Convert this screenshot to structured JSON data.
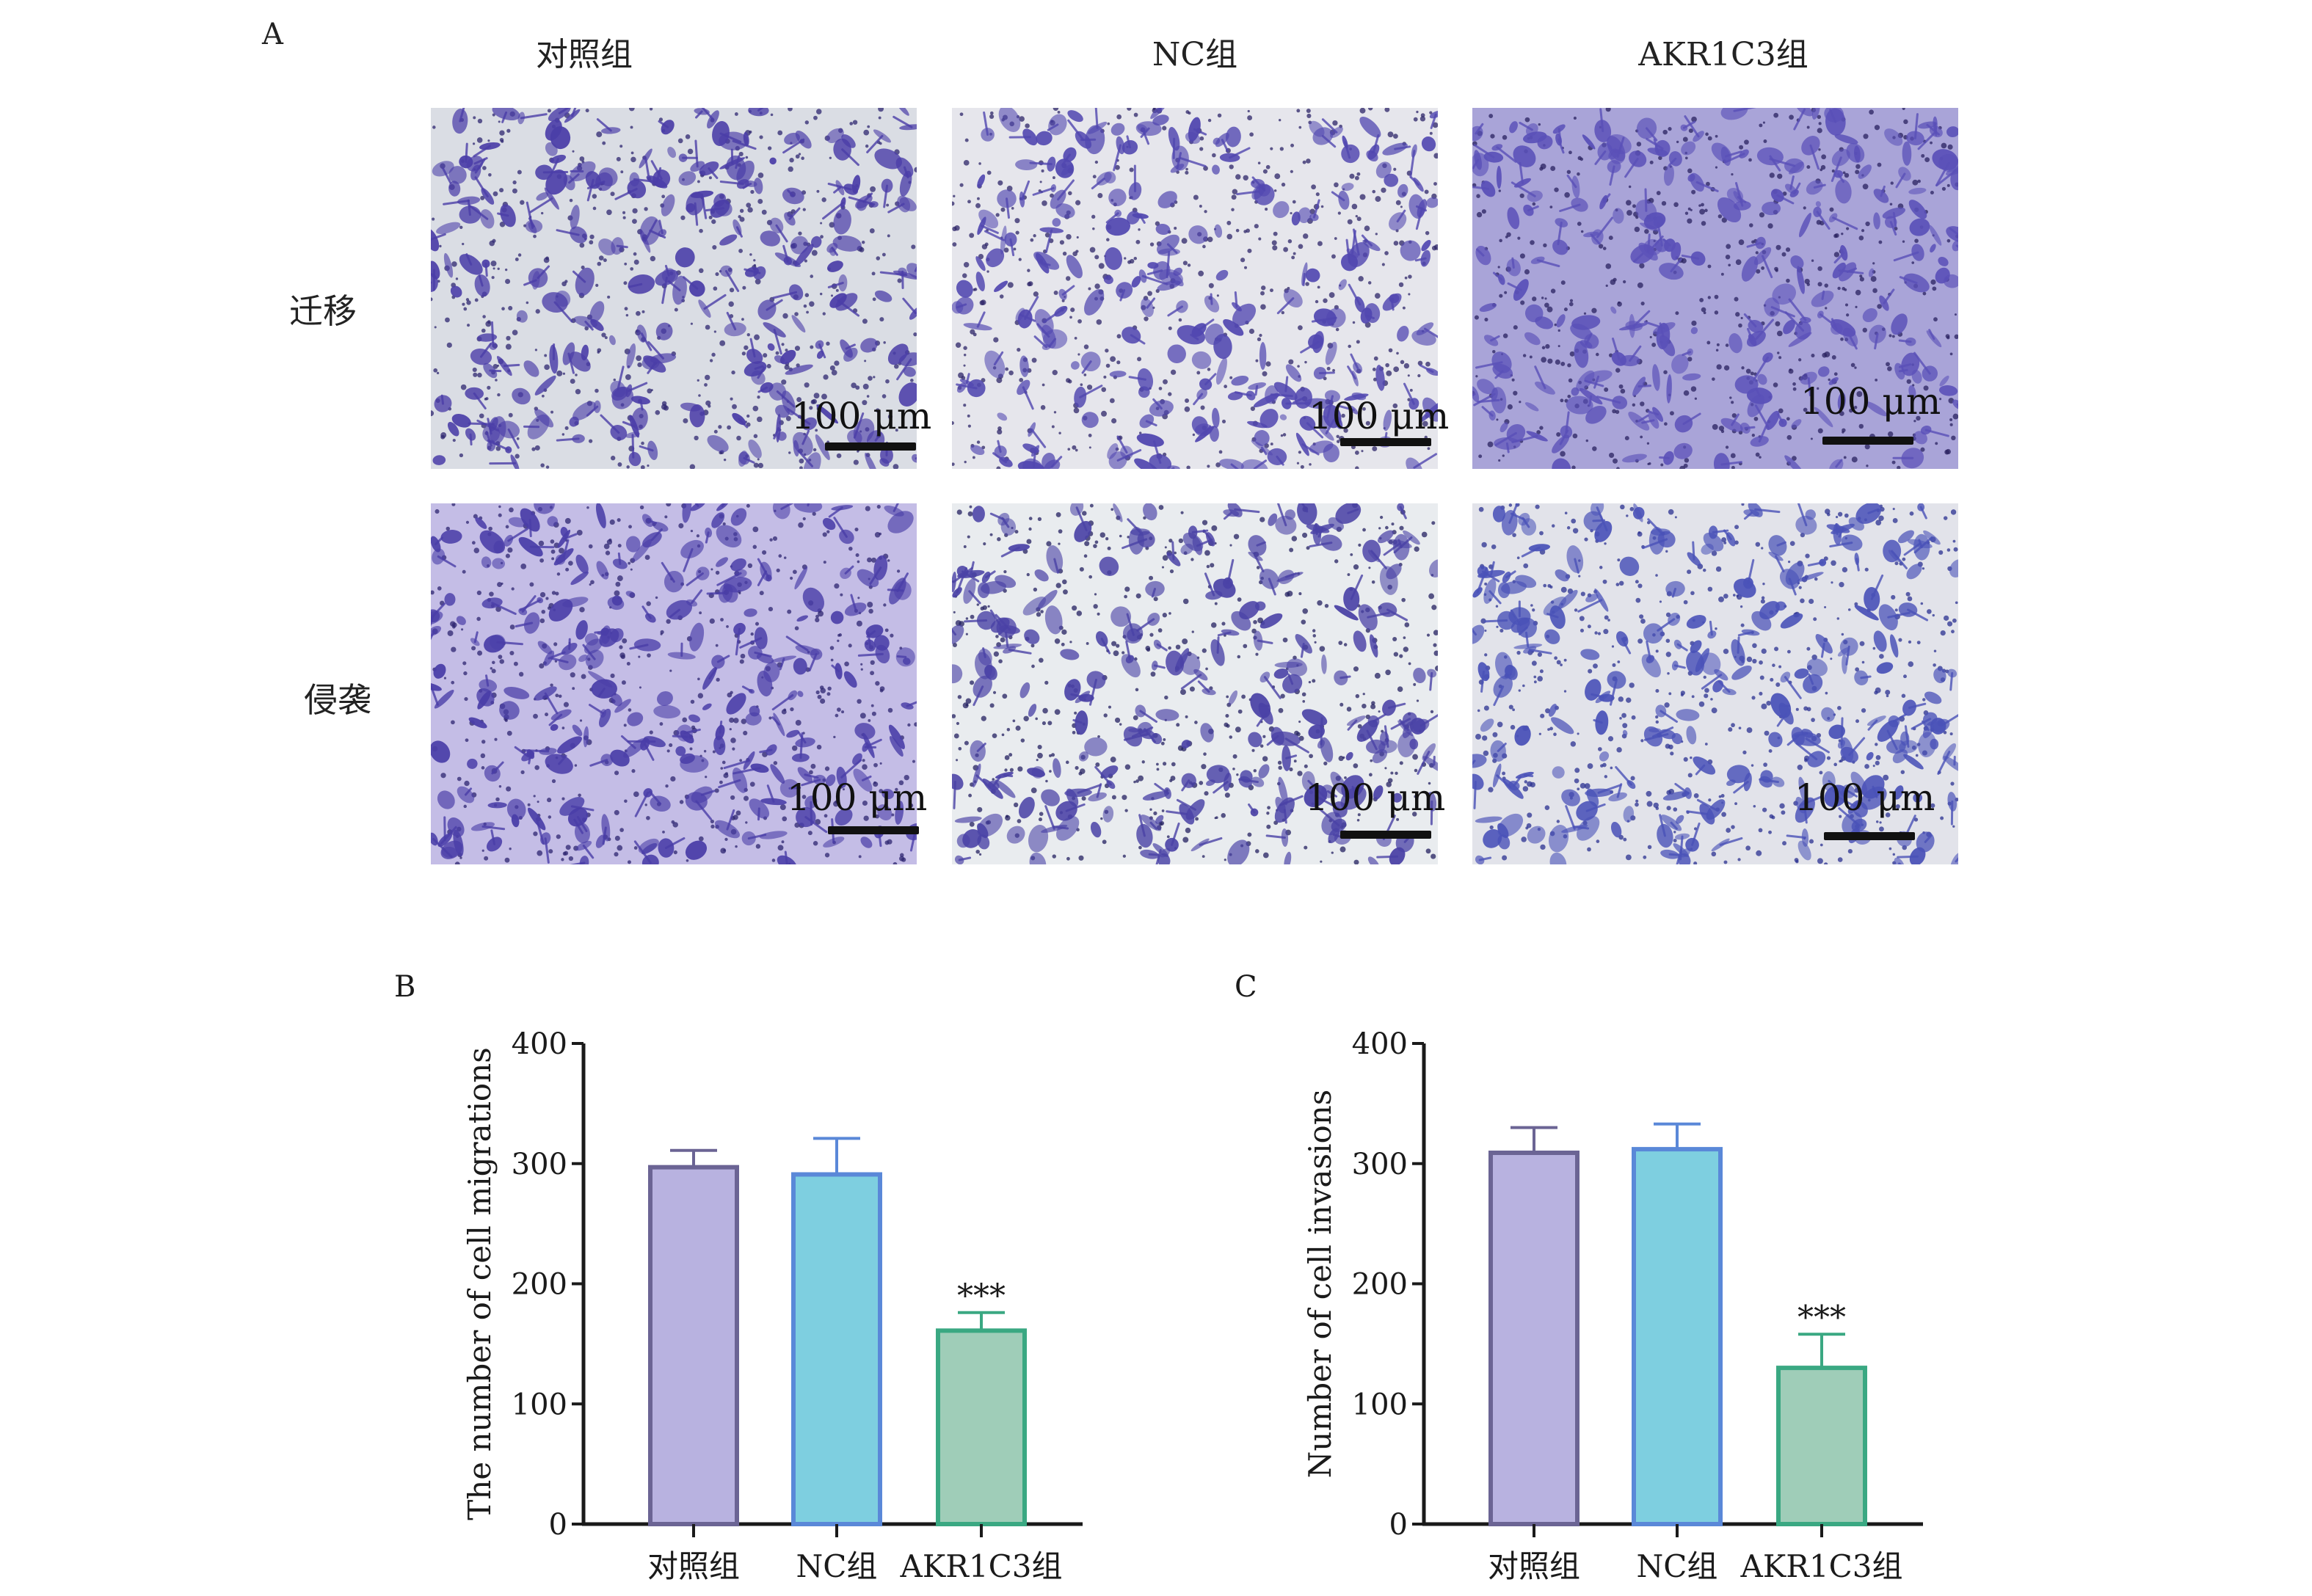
{
  "panel_a": {
    "letter": "A",
    "columns": [
      "对照组",
      "NC组",
      "AKR1C3组"
    ],
    "rows": [
      "迁移",
      "侵袭"
    ],
    "scale_label": "100 μm",
    "images": [
      {
        "row": 0,
        "col": 0,
        "bg": "#dadde4",
        "cell": "#4b3ea8",
        "dark": "#2e2670"
      },
      {
        "row": 0,
        "col": 1,
        "bg": "#e6e6ec",
        "cell": "#5147b0",
        "dark": "#2c2468"
      },
      {
        "row": 0,
        "col": 2,
        "bg": "#a9a4d8",
        "cell": "#5a50b8",
        "dark": "#2a2260"
      },
      {
        "row": 1,
        "col": 0,
        "bg": "#c4bde6",
        "cell": "#4a3ea8",
        "dark": "#2e2670"
      },
      {
        "row": 1,
        "col": 1,
        "bg": "#e9ecef",
        "cell": "#4a42a6",
        "dark": "#232060"
      },
      {
        "row": 1,
        "col": 2,
        "bg": "#e2e3ea",
        "cell": "#4a52b8",
        "dark": "#2a3090"
      }
    ]
  },
  "chart_data": [
    {
      "letter": "B",
      "type": "bar",
      "categories": [
        "对照组",
        "NC组",
        "AKR1C3组"
      ],
      "values": [
        297,
        291,
        161
      ],
      "errors": [
        14,
        30,
        15
      ],
      "significance": [
        "",
        "",
        "***"
      ],
      "ylabel": "The number of cell migrations",
      "ylim": [
        0,
        400
      ],
      "yticks": [
        "0",
        "100",
        "200",
        "300",
        "400"
      ],
      "colors": [
        "#b8b2e0",
        "#7ecfe0",
        "#9fcdb8"
      ],
      "edge_colors": [
        "#6b6494",
        "#5a88d8",
        "#3aa882"
      ]
    },
    {
      "letter": "C",
      "type": "bar",
      "categories": [
        "对照组",
        "NC组",
        "AKR1C3组"
      ],
      "values": [
        309,
        312,
        130
      ],
      "errors": [
        21,
        21,
        28
      ],
      "significance": [
        "",
        "",
        "***"
      ],
      "ylabel": "Number of cell invasions",
      "ylim": [
        0,
        400
      ],
      "yticks": [
        "0",
        "100",
        "200",
        "300",
        "400"
      ],
      "colors": [
        "#b8b2e0",
        "#7ecfe0",
        "#9fcdb8"
      ],
      "edge_colors": [
        "#6b6494",
        "#5a88d8",
        "#3aa882"
      ]
    }
  ]
}
